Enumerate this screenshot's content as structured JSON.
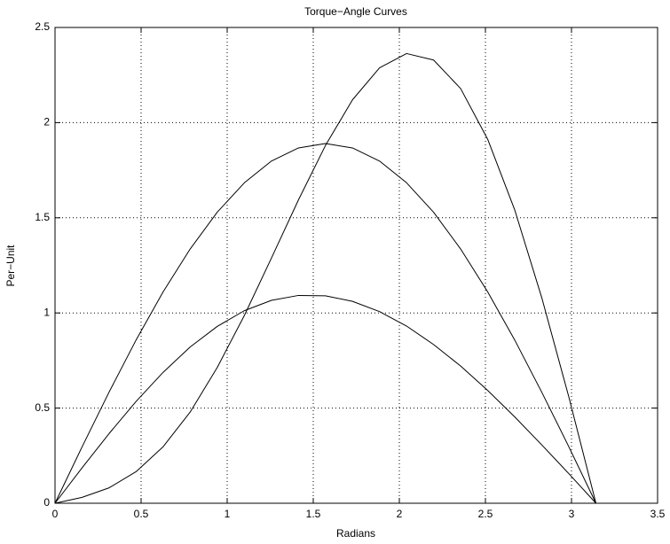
{
  "chart_data": {
    "type": "line",
    "title": "Torque−Angle Curves",
    "x_label": "Radians",
    "y_label": "Per−Unit",
    "x": [
      0,
      0.157,
      0.314,
      0.471,
      0.628,
      0.785,
      0.942,
      1.1,
      1.257,
      1.414,
      1.571,
      1.728,
      1.885,
      2.042,
      2.199,
      2.356,
      2.513,
      2.67,
      2.827,
      2.985,
      3.142
    ],
    "series": [
      {
        "color": "#000000",
        "values": [
          0,
          0.186,
          0.366,
          0.535,
          0.688,
          0.821,
          0.929,
          1.012,
          1.066,
          1.092,
          1.09,
          1.061,
          1.007,
          0.931,
          0.834,
          0.721,
          0.593,
          0.454,
          0.307,
          0.155,
          0
        ]
      },
      {
        "color": "#000000",
        "values": [
          0,
          0.296,
          0.584,
          0.858,
          1.111,
          1.336,
          1.529,
          1.684,
          1.798,
          1.867,
          1.89,
          1.867,
          1.798,
          1.684,
          1.529,
          1.336,
          1.111,
          0.858,
          0.584,
          0.296,
          0
        ]
      },
      {
        "color": "#000000",
        "values": [
          0,
          0.031,
          0.081,
          0.166,
          0.297,
          0.479,
          0.713,
          0.987,
          1.288,
          1.594,
          1.88,
          2.12,
          2.288,
          2.363,
          2.329,
          2.179,
          1.913,
          1.542,
          1.081,
          0.557,
          0
        ]
      }
    ],
    "xlim": [
      0,
      3.5
    ],
    "xticks": [
      0,
      0.5,
      1,
      1.5,
      2,
      2.5,
      3,
      3.5
    ],
    "ylim": [
      0,
      2.5
    ],
    "yticks": [
      0,
      0.5,
      1,
      1.5,
      2,
      2.5
    ],
    "grid": true
  }
}
